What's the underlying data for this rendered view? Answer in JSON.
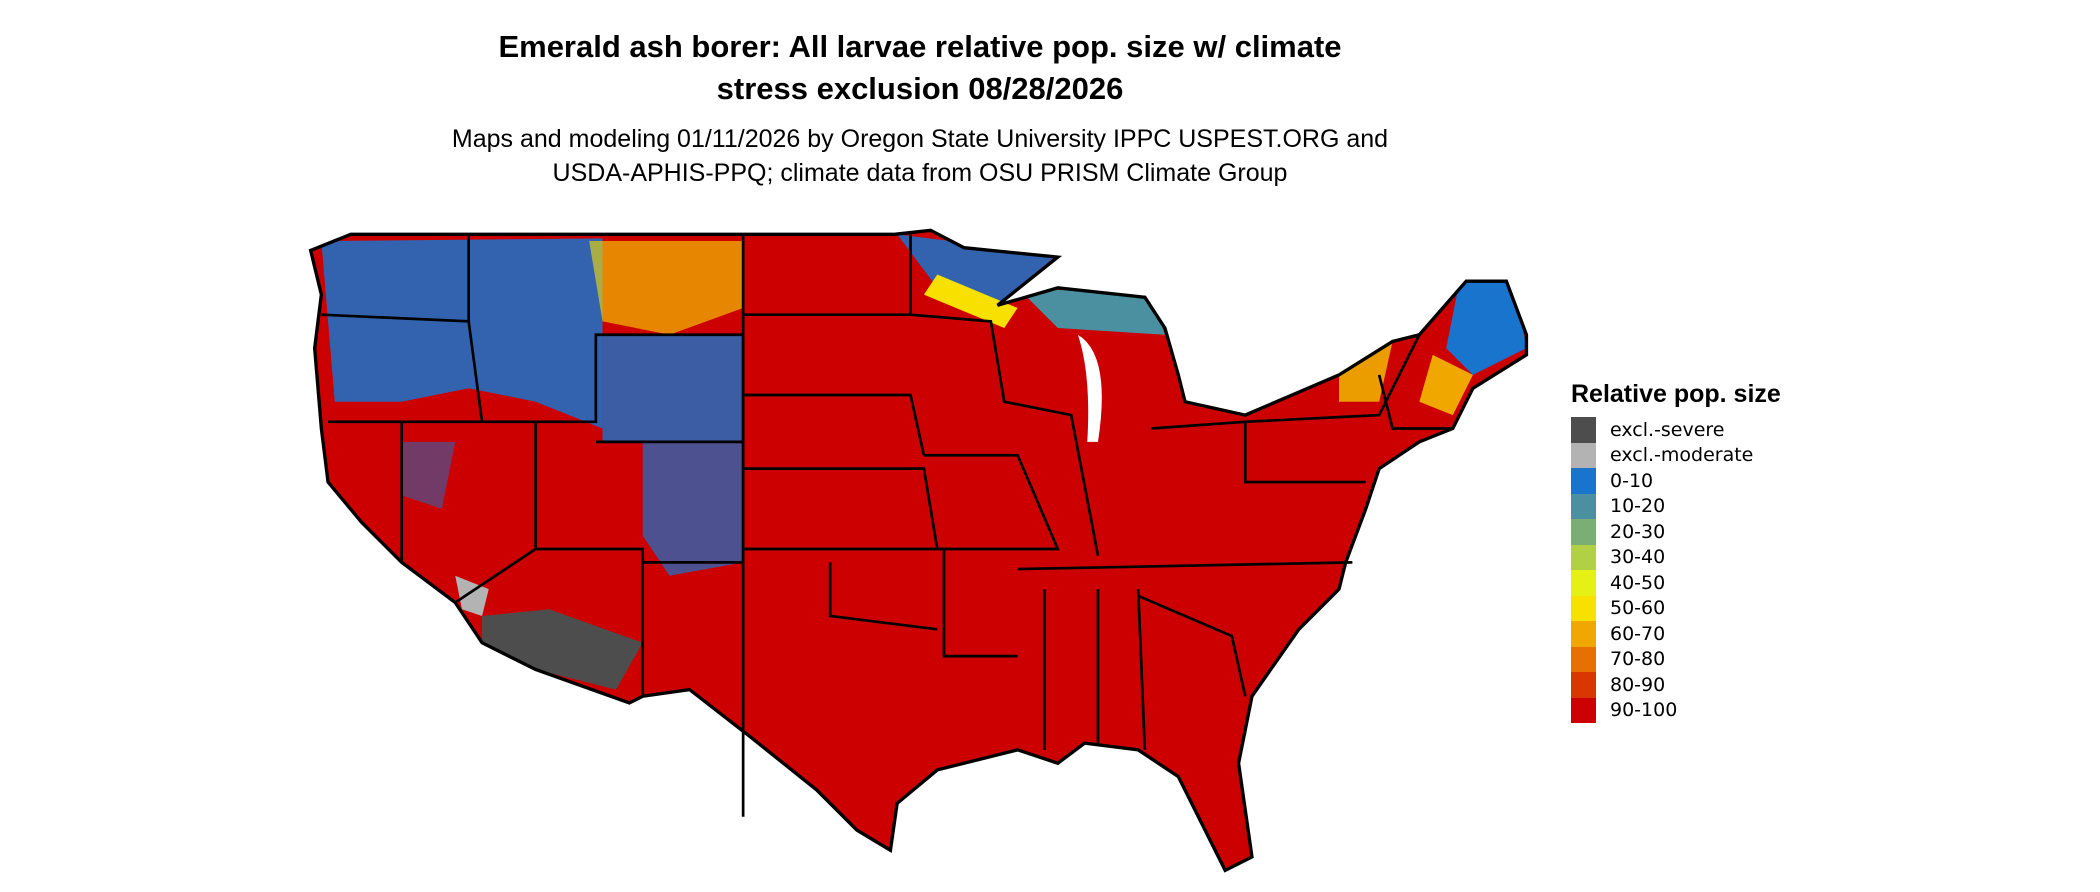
{
  "title_line1": "Emerald ash borer: All larvae relative pop. size w/ climate",
  "title_line2": "stress exclusion 08/28/2026",
  "subtitle_line1": "Maps and modeling 01/11/2026 by Oregon State University IPPC USPEST.ORG and",
  "subtitle_line2": "USDA-APHIS-PPQ; climate data from OSU PRISM Climate Group",
  "legend": {
    "title": "Relative pop. size",
    "items": [
      {
        "label": "excl.-severe",
        "color": "#4d4d4d"
      },
      {
        "label": "excl.-moderate",
        "color": "#b3b3b3"
      },
      {
        "label": "0-10",
        "color": "#1874cd"
      },
      {
        "label": "10-20",
        "color": "#4a90a0"
      },
      {
        "label": "20-30",
        "color": "#7aae74"
      },
      {
        "label": "30-40",
        "color": "#b2d045"
      },
      {
        "label": "40-50",
        "color": "#e5f014"
      },
      {
        "label": "50-60",
        "color": "#f8e000"
      },
      {
        "label": "60-70",
        "color": "#f0a800"
      },
      {
        "label": "70-80",
        "color": "#e67000"
      },
      {
        "label": "80-90",
        "color": "#d83800"
      },
      {
        "label": "90-100",
        "color": "#cc0000"
      }
    ]
  }
}
